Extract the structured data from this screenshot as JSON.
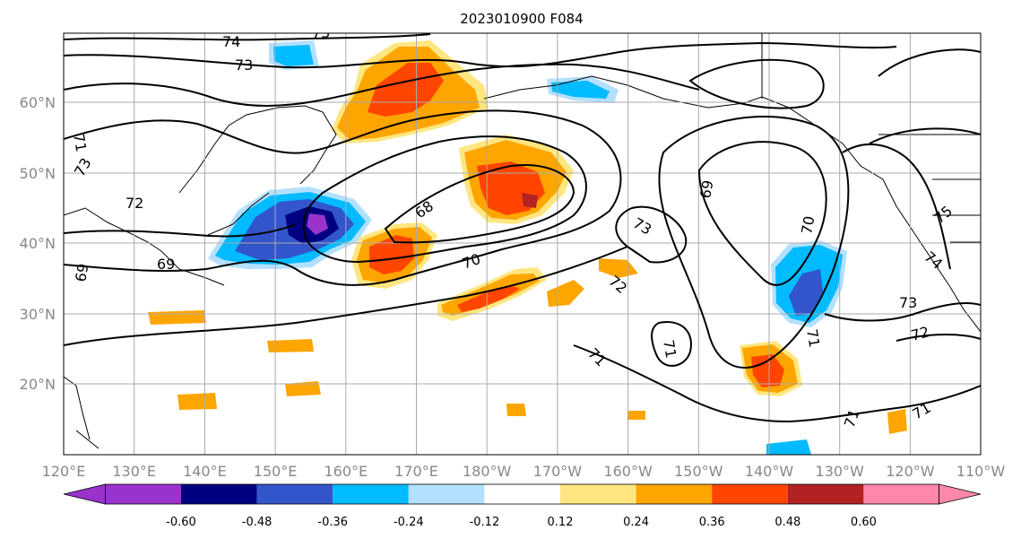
{
  "title": "2023010900 F084",
  "lat_labels": [
    "60°N",
    "50°N",
    "40°N",
    "30°N",
    "20°N"
  ],
  "lon_labels": [
    "120°E",
    "130°E",
    "140°E",
    "150°E",
    "160°E",
    "170°E",
    "180°W",
    "170°W",
    "160°W",
    "150°W",
    "140°W",
    "130°W",
    "120°W",
    "110°W"
  ],
  "contour_labels": [
    "74",
    "73",
    "73",
    "71",
    "73",
    "72",
    "68",
    "69",
    "69",
    "70",
    "73",
    "72",
    "71",
    "69",
    "70",
    "71",
    "73",
    "72",
    "71",
    "71",
    "74",
    "75",
    "71"
  ],
  "colorbar": {
    "ticks": [
      "-0.60",
      "-0.48",
      "-0.36",
      "-0.24",
      "-0.12",
      "0.12",
      "0.24",
      "0.36",
      "0.48",
      "0.60"
    ],
    "colors": [
      "#9933cc",
      "#000080",
      "#3355cc",
      "#00bbff",
      "#b3e0ff",
      "#ffffff",
      "#ffe680",
      "#ffa500",
      "#ff4500",
      "#b22222",
      "#ff88aa"
    ]
  }
}
